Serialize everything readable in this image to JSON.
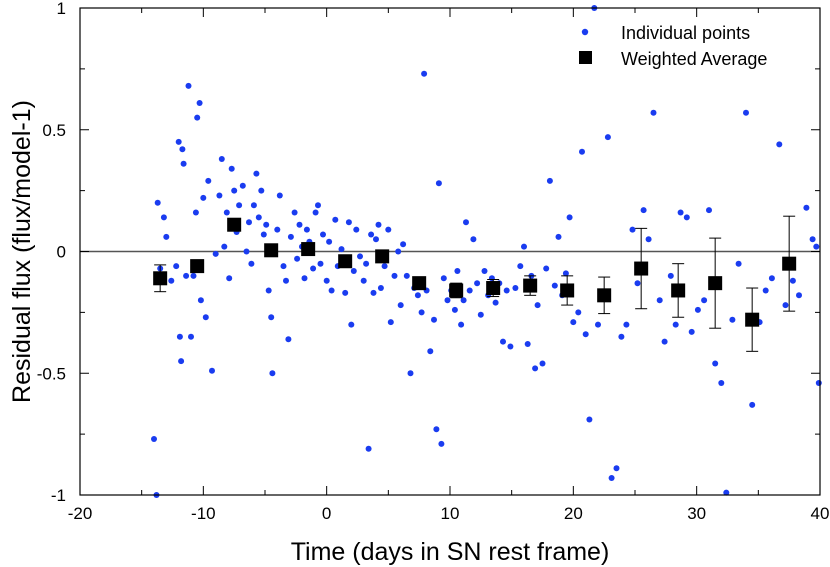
{
  "chart_data": {
    "type": "scatter",
    "title": "",
    "xlabel": "Time (days in SN rest frame)",
    "ylabel": "Residual flux (flux/model-1)",
    "xlim": [
      -20,
      40
    ],
    "ylim": [
      -1,
      1
    ],
    "x_ticks": [
      -20,
      -10,
      0,
      10,
      20,
      30,
      40
    ],
    "x_tick_labels": [
      "-20",
      "-10",
      "0",
      "10",
      "20",
      "30",
      "40"
    ],
    "y_ticks": [
      -1,
      -0.5,
      0,
      0.5,
      1
    ],
    "y_tick_labels": [
      "-1",
      "-0.5",
      "0",
      "0.5",
      "1"
    ],
    "reference_line_y": 0,
    "legend_position": "top-right",
    "series": [
      {
        "name": "Individual points",
        "marker": "circle",
        "color": "#1a3cf0",
        "points": [
          [
            -14,
            -0.77
          ],
          [
            -13.8,
            -1.0
          ],
          [
            -13.7,
            0.2
          ],
          [
            -13.5,
            -0.07
          ],
          [
            -13.2,
            0.14
          ],
          [
            -13.0,
            0.06
          ],
          [
            -12.6,
            -0.12
          ],
          [
            -12.2,
            -0.06
          ],
          [
            -12.0,
            0.45
          ],
          [
            -11.9,
            -0.35
          ],
          [
            -11.8,
            -0.45
          ],
          [
            -11.7,
            0.42
          ],
          [
            -11.6,
            0.36
          ],
          [
            -11.4,
            -0.1
          ],
          [
            -11.2,
            0.68
          ],
          [
            -11.0,
            -0.35
          ],
          [
            -10.8,
            -0.1
          ],
          [
            -10.6,
            0.16
          ],
          [
            -10.5,
            0.55
          ],
          [
            -10.3,
            0.61
          ],
          [
            -10.2,
            -0.2
          ],
          [
            -10.0,
            0.22
          ],
          [
            -9.8,
            -0.27
          ],
          [
            -9.6,
            0.29
          ],
          [
            -9.3,
            -0.49
          ],
          [
            -9.0,
            -0.01
          ],
          [
            -8.7,
            0.23
          ],
          [
            -8.5,
            0.38
          ],
          [
            -8.3,
            0.02
          ],
          [
            -8.1,
            0.16
          ],
          [
            -7.9,
            -0.11
          ],
          [
            -7.7,
            0.34
          ],
          [
            -7.5,
            0.25
          ],
          [
            -7.3,
            0.08
          ],
          [
            -7.1,
            0.19
          ],
          [
            -6.8,
            0.27
          ],
          [
            -6.5,
            0.0
          ],
          [
            -6.3,
            0.12
          ],
          [
            -6.1,
            -0.05
          ],
          [
            -5.9,
            0.19
          ],
          [
            -5.7,
            0.32
          ],
          [
            -5.5,
            0.14
          ],
          [
            -5.3,
            0.25
          ],
          [
            -5.1,
            0.07
          ],
          [
            -4.9,
            0.11
          ],
          [
            -4.7,
            -0.16
          ],
          [
            -4.5,
            -0.27
          ],
          [
            -4.4,
            -0.5
          ],
          [
            -4.2,
            0.02
          ],
          [
            -4.0,
            0.09
          ],
          [
            -3.8,
            0.23
          ],
          [
            -3.5,
            -0.06
          ],
          [
            -3.3,
            -0.12
          ],
          [
            -3.1,
            -0.36
          ],
          [
            -2.9,
            0.06
          ],
          [
            -2.6,
            0.16
          ],
          [
            -2.4,
            -0.03
          ],
          [
            -2.2,
            0.11
          ],
          [
            -2.0,
            0.02
          ],
          [
            -1.8,
            -0.11
          ],
          [
            -1.6,
            0.09
          ],
          [
            -1.4,
            0.04
          ],
          [
            -1.1,
            -0.07
          ],
          [
            -0.9,
            0.16
          ],
          [
            -0.7,
            0.19
          ],
          [
            -0.5,
            -0.05
          ],
          [
            -0.3,
            0.07
          ],
          [
            0.0,
            -0.12
          ],
          [
            0.2,
            0.04
          ],
          [
            0.4,
            -0.16
          ],
          [
            0.7,
            0.13
          ],
          [
            0.9,
            -0.06
          ],
          [
            1.2,
            0.01
          ],
          [
            1.5,
            -0.17
          ],
          [
            1.8,
            0.12
          ],
          [
            2.0,
            -0.3
          ],
          [
            2.2,
            -0.08
          ],
          [
            2.4,
            0.09
          ],
          [
            2.7,
            -0.02
          ],
          [
            3.0,
            -0.12
          ],
          [
            3.2,
            -0.05
          ],
          [
            3.4,
            -0.81
          ],
          [
            3.6,
            0.07
          ],
          [
            3.8,
            -0.17
          ],
          [
            4.0,
            0.05
          ],
          [
            4.2,
            0.11
          ],
          [
            4.4,
            -0.15
          ],
          [
            4.7,
            -0.06
          ],
          [
            5.0,
            0.09
          ],
          [
            5.2,
            -0.29
          ],
          [
            5.5,
            -0.1
          ],
          [
            5.8,
            0.0
          ],
          [
            6.0,
            -0.22
          ],
          [
            6.2,
            0.03
          ],
          [
            6.5,
            -0.1
          ],
          [
            6.8,
            -0.5
          ],
          [
            7.1,
            -0.15
          ],
          [
            7.4,
            -0.18
          ],
          [
            7.7,
            -0.25
          ],
          [
            7.9,
            0.73
          ],
          [
            8.1,
            -0.16
          ],
          [
            8.4,
            -0.41
          ],
          [
            8.7,
            -0.28
          ],
          [
            8.9,
            -0.73
          ],
          [
            9.1,
            0.28
          ],
          [
            9.3,
            -0.79
          ],
          [
            9.5,
            -0.11
          ],
          [
            9.8,
            -0.2
          ],
          [
            10.1,
            -0.16
          ],
          [
            10.4,
            -0.24
          ],
          [
            10.6,
            -0.08
          ],
          [
            10.9,
            -0.3
          ],
          [
            11.1,
            -0.2
          ],
          [
            11.3,
            0.12
          ],
          [
            11.6,
            -0.16
          ],
          [
            11.9,
            0.05
          ],
          [
            12.2,
            -0.13
          ],
          [
            12.5,
            -0.26
          ],
          [
            12.8,
            -0.08
          ],
          [
            13.1,
            -0.18
          ],
          [
            13.4,
            -0.11
          ],
          [
            13.7,
            -0.21
          ],
          [
            14.0,
            -0.13
          ],
          [
            14.3,
            -0.37
          ],
          [
            14.6,
            -0.16
          ],
          [
            14.9,
            -0.39
          ],
          [
            15.3,
            -0.15
          ],
          [
            15.7,
            -0.06
          ],
          [
            16.0,
            0.02
          ],
          [
            16.3,
            -0.38
          ],
          [
            16.6,
            -0.1
          ],
          [
            16.9,
            -0.48
          ],
          [
            17.1,
            -0.22
          ],
          [
            17.5,
            -0.46
          ],
          [
            17.8,
            -0.07
          ],
          [
            18.1,
            0.29
          ],
          [
            18.5,
            -0.14
          ],
          [
            18.8,
            0.06
          ],
          [
            19.1,
            -0.18
          ],
          [
            19.4,
            -0.09
          ],
          [
            19.7,
            0.14
          ],
          [
            20.0,
            -0.29
          ],
          [
            20.4,
            -0.25
          ],
          [
            20.7,
            0.41
          ],
          [
            21.0,
            -0.34
          ],
          [
            21.3,
            -0.69
          ],
          [
            21.7,
            1.0
          ],
          [
            22.0,
            -0.3
          ],
          [
            22.4,
            -0.17
          ],
          [
            22.8,
            0.47
          ],
          [
            23.1,
            -0.93
          ],
          [
            23.5,
            -0.89
          ],
          [
            23.9,
            -0.35
          ],
          [
            24.3,
            -0.3
          ],
          [
            24.8,
            0.09
          ],
          [
            25.2,
            -0.13
          ],
          [
            25.7,
            0.17
          ],
          [
            26.1,
            0.05
          ],
          [
            26.5,
            0.57
          ],
          [
            27.0,
            -0.2
          ],
          [
            27.4,
            -0.37
          ],
          [
            27.9,
            -0.1
          ],
          [
            28.3,
            -0.3
          ],
          [
            28.7,
            0.16
          ],
          [
            29.2,
            0.14
          ],
          [
            29.6,
            -0.33
          ],
          [
            30.1,
            -0.24
          ],
          [
            30.6,
            -0.2
          ],
          [
            31.0,
            0.17
          ],
          [
            31.5,
            -0.46
          ],
          [
            32.0,
            -0.54
          ],
          [
            32.4,
            -0.99
          ],
          [
            32.9,
            -0.28
          ],
          [
            33.4,
            -0.05
          ],
          [
            34.0,
            0.57
          ],
          [
            34.5,
            -0.63
          ],
          [
            35.1,
            -0.29
          ],
          [
            35.6,
            -0.16
          ],
          [
            36.1,
            -0.11
          ],
          [
            36.7,
            0.44
          ],
          [
            37.2,
            -0.22
          ],
          [
            37.8,
            -0.12
          ],
          [
            38.3,
            -0.18
          ],
          [
            38.9,
            0.18
          ],
          [
            39.4,
            0.05
          ],
          [
            39.7,
            0.02
          ],
          [
            39.9,
            -0.54
          ]
        ]
      },
      {
        "name": "Weighted Average",
        "marker": "square",
        "color": "#000000",
        "x": [
          -13.5,
          -10.5,
          -7.5,
          -4.5,
          -1.5,
          1.5,
          4.5,
          7.5,
          10.5,
          13.5,
          16.5,
          19.5,
          22.5,
          25.5,
          28.5,
          31.5,
          34.5,
          37.5
        ],
        "values": [
          -0.11,
          -0.06,
          0.11,
          0.005,
          0.01,
          -0.04,
          -0.02,
          -0.13,
          -0.16,
          -0.15,
          -0.14,
          -0.16,
          -0.18,
          -0.07,
          -0.16,
          -0.13,
          -0.28,
          -0.05
        ],
        "errors": [
          0.055,
          0.02,
          0.025,
          0.02,
          0.02,
          0.02,
          0.02,
          0.025,
          0.03,
          0.035,
          0.04,
          0.06,
          0.075,
          0.165,
          0.11,
          0.185,
          0.13,
          0.195
        ]
      }
    ]
  }
}
